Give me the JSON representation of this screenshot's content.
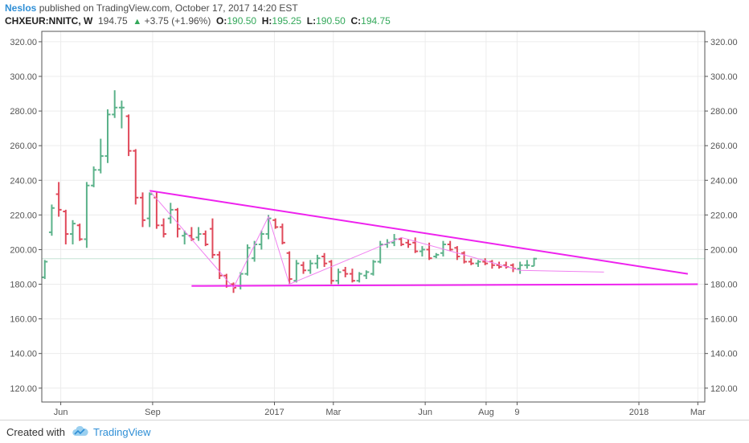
{
  "header": {
    "author": "Neslos",
    "published_text": "published on TradingView.com, October 17, 2017 14:20 EST",
    "symbol": "CHXEUR:NNITC, W",
    "last": "194.75",
    "change": "+3.75 (+1.96%)",
    "o_label": "O:",
    "o_value": "190.50",
    "h_label": "H:",
    "h_value": "195.25",
    "l_label": "L:",
    "l_value": "190.50",
    "c_label": "C:",
    "c_value": "194.75"
  },
  "footer": {
    "created_with": "Created with",
    "brand": "TradingView"
  },
  "colors": {
    "up": "#5bb28a",
    "down": "#e0495a",
    "trendline": "#ee22ee",
    "pattern": "#f080f0",
    "grid": "#ececec",
    "last_price_line": "#c6e4d6"
  },
  "chart_data": {
    "type": "ohlc",
    "title": "CHXEUR:NNITC, W",
    "ylim": [
      112,
      326
    ],
    "y_ticks": [
      "120.00",
      "140.00",
      "160.00",
      "180.00",
      "200.00",
      "220.00",
      "240.00",
      "260.00",
      "280.00",
      "300.00",
      "320.00"
    ],
    "x_ticks": [
      {
        "label": "Jun",
        "date": "2016-06-01"
      },
      {
        "label": "Sep",
        "date": "2016-09-01"
      },
      {
        "label": "2017",
        "date": "2017-01-01"
      },
      {
        "label": "Mar",
        "date": "2017-03-01"
      },
      {
        "label": "Jun",
        "date": "2017-06-01"
      },
      {
        "label": "Aug",
        "date": "2017-08-01"
      },
      {
        "label": "9",
        "date": "2017-09-01"
      },
      {
        "label": "2018",
        "date": "2018-01-01"
      },
      {
        "label": "Mar",
        "date": "2018-03-01"
      }
    ],
    "x_range": [
      "2016-05-13",
      "2018-03-08"
    ],
    "last_price": 194.75,
    "bars": [
      {
        "date": "2016-05-16",
        "o": 184,
        "h": 194,
        "l": 183,
        "c": 193
      },
      {
        "date": "2016-05-23",
        "o": 210,
        "h": 226,
        "l": 208,
        "c": 224
      },
      {
        "date": "2016-05-30",
        "o": 232,
        "h": 239,
        "l": 219,
        "c": 223
      },
      {
        "date": "2016-06-06",
        "o": 222,
        "h": 223,
        "l": 203,
        "c": 209
      },
      {
        "date": "2016-06-13",
        "o": 209,
        "h": 217,
        "l": 203,
        "c": 215
      },
      {
        "date": "2016-06-20",
        "o": 214,
        "h": 215,
        "l": 205,
        "c": 206
      },
      {
        "date": "2016-06-27",
        "o": 206,
        "h": 239,
        "l": 201,
        "c": 237
      },
      {
        "date": "2016-07-04",
        "o": 237,
        "h": 248,
        "l": 236,
        "c": 246
      },
      {
        "date": "2016-07-11",
        "o": 246,
        "h": 264,
        "l": 244,
        "c": 254
      },
      {
        "date": "2016-07-18",
        "o": 254,
        "h": 281,
        "l": 250,
        "c": 278
      },
      {
        "date": "2016-07-25",
        "o": 278,
        "h": 292,
        "l": 276,
        "c": 282
      },
      {
        "date": "2016-08-01",
        "o": 282,
        "h": 286,
        "l": 270,
        "c": 282
      },
      {
        "date": "2016-08-08",
        "o": 277,
        "h": 278,
        "l": 254,
        "c": 257
      },
      {
        "date": "2016-08-15",
        "o": 257,
        "h": 258,
        "l": 226,
        "c": 230
      },
      {
        "date": "2016-08-22",
        "o": 230,
        "h": 233,
        "l": 213,
        "c": 217
      },
      {
        "date": "2016-08-29",
        "o": 218,
        "h": 233,
        "l": 213,
        "c": 232
      },
      {
        "date": "2016-09-05",
        "o": 230,
        "h": 233,
        "l": 212,
        "c": 214
      },
      {
        "date": "2016-09-12",
        "o": 214,
        "h": 218,
        "l": 207,
        "c": 209
      },
      {
        "date": "2016-09-19",
        "o": 218,
        "h": 227,
        "l": 215,
        "c": 223
      },
      {
        "date": "2016-09-26",
        "o": 223,
        "h": 224,
        "l": 207,
        "c": 212
      },
      {
        "date": "2016-10-03",
        "o": 208,
        "h": 211,
        "l": 203,
        "c": 209
      },
      {
        "date": "2016-10-10",
        "o": 208,
        "h": 213,
        "l": 205,
        "c": 206
      },
      {
        "date": "2016-10-17",
        "o": 207,
        "h": 213,
        "l": 205,
        "c": 209
      },
      {
        "date": "2016-10-24",
        "o": 209,
        "h": 211,
        "l": 202,
        "c": 203
      },
      {
        "date": "2016-10-31",
        "o": 212,
        "h": 218,
        "l": 195,
        "c": 197
      },
      {
        "date": "2016-11-07",
        "o": 197,
        "h": 199,
        "l": 183,
        "c": 185
      },
      {
        "date": "2016-11-14",
        "o": 185,
        "h": 186,
        "l": 178,
        "c": 179
      },
      {
        "date": "2016-11-21",
        "o": 180,
        "h": 181,
        "l": 175,
        "c": 178
      },
      {
        "date": "2016-11-28",
        "o": 179,
        "h": 187,
        "l": 177,
        "c": 186
      },
      {
        "date": "2016-12-05",
        "o": 186,
        "h": 203,
        "l": 185,
        "c": 201
      },
      {
        "date": "2016-12-12",
        "o": 195,
        "h": 205,
        "l": 193,
        "c": 203
      },
      {
        "date": "2016-12-19",
        "o": 203,
        "h": 211,
        "l": 200,
        "c": 209
      },
      {
        "date": "2016-12-26",
        "o": 209,
        "h": 220,
        "l": 206,
        "c": 218
      },
      {
        "date": "2017-01-02",
        "o": 217,
        "h": 218,
        "l": 212,
        "c": 213
      },
      {
        "date": "2017-01-09",
        "o": 213,
        "h": 215,
        "l": 203,
        "c": 204
      },
      {
        "date": "2017-01-16",
        "o": 198,
        "h": 199,
        "l": 180,
        "c": 183
      },
      {
        "date": "2017-01-23",
        "o": 182,
        "h": 194,
        "l": 181,
        "c": 192
      },
      {
        "date": "2017-01-30",
        "o": 191,
        "h": 193,
        "l": 186,
        "c": 188
      },
      {
        "date": "2017-02-06",
        "o": 188,
        "h": 194,
        "l": 186,
        "c": 192
      },
      {
        "date": "2017-02-13",
        "o": 192,
        "h": 197,
        "l": 189,
        "c": 195
      },
      {
        "date": "2017-02-20",
        "o": 196,
        "h": 198,
        "l": 190,
        "c": 192
      },
      {
        "date": "2017-02-27",
        "o": 193,
        "h": 194,
        "l": 180,
        "c": 182
      },
      {
        "date": "2017-03-06",
        "o": 182,
        "h": 189,
        "l": 180,
        "c": 187
      },
      {
        "date": "2017-03-13",
        "o": 188,
        "h": 190,
        "l": 184,
        "c": 186
      },
      {
        "date": "2017-03-20",
        "o": 186,
        "h": 189,
        "l": 181,
        "c": 182
      },
      {
        "date": "2017-03-27",
        "o": 182,
        "h": 187,
        "l": 181,
        "c": 186
      },
      {
        "date": "2017-04-03",
        "o": 185,
        "h": 188,
        "l": 183,
        "c": 187
      },
      {
        "date": "2017-04-10",
        "o": 186,
        "h": 194,
        "l": 185,
        "c": 193
      },
      {
        "date": "2017-04-17",
        "o": 193,
        "h": 205,
        "l": 192,
        "c": 203
      },
      {
        "date": "2017-04-24",
        "o": 203,
        "h": 206,
        "l": 201,
        "c": 204
      },
      {
        "date": "2017-05-01",
        "o": 204,
        "h": 209,
        "l": 202,
        "c": 206
      },
      {
        "date": "2017-05-08",
        "o": 206,
        "h": 207,
        "l": 202,
        "c": 203
      },
      {
        "date": "2017-05-15",
        "o": 204,
        "h": 206,
        "l": 201,
        "c": 203
      },
      {
        "date": "2017-05-22",
        "o": 204,
        "h": 207,
        "l": 198,
        "c": 199
      },
      {
        "date": "2017-05-29",
        "o": 199,
        "h": 202,
        "l": 196,
        "c": 200
      },
      {
        "date": "2017-06-05",
        "o": 200,
        "h": 204,
        "l": 194,
        "c": 195
      },
      {
        "date": "2017-06-12",
        "o": 196,
        "h": 198,
        "l": 195,
        "c": 197
      },
      {
        "date": "2017-06-19",
        "o": 198,
        "h": 205,
        "l": 196,
        "c": 203
      },
      {
        "date": "2017-06-26",
        "o": 203,
        "h": 205,
        "l": 199,
        "c": 200
      },
      {
        "date": "2017-07-03",
        "o": 201,
        "h": 202,
        "l": 194,
        "c": 196
      },
      {
        "date": "2017-07-10",
        "o": 198,
        "h": 199,
        "l": 192,
        "c": 193
      },
      {
        "date": "2017-07-17",
        "o": 193,
        "h": 195,
        "l": 191,
        "c": 192
      },
      {
        "date": "2017-07-24",
        "o": 192,
        "h": 194,
        "l": 190,
        "c": 193
      },
      {
        "date": "2017-07-31",
        "o": 193,
        "h": 195,
        "l": 191,
        "c": 192
      },
      {
        "date": "2017-08-07",
        "o": 193,
        "h": 194,
        "l": 189,
        "c": 191
      },
      {
        "date": "2017-08-14",
        "o": 191,
        "h": 193,
        "l": 189,
        "c": 190
      },
      {
        "date": "2017-08-21",
        "o": 191,
        "h": 193,
        "l": 189,
        "c": 190
      },
      {
        "date": "2017-08-28",
        "o": 191,
        "h": 192,
        "l": 187,
        "c": 189
      },
      {
        "date": "2017-09-04",
        "o": 189,
        "h": 193,
        "l": 186,
        "c": 191
      },
      {
        "date": "2017-09-11",
        "o": 191,
        "h": 194,
        "l": 189,
        "c": 191
      },
      {
        "date": "2017-09-18",
        "o": 190.5,
        "h": 195.25,
        "l": 190.5,
        "c": 194.75
      }
    ],
    "annotations": {
      "upper_trendline": [
        [
          "2016-08-29",
          234
        ],
        [
          "2018-02-19",
          186
        ]
      ],
      "lower_trendline": [
        [
          "2016-10-10",
          179
        ],
        [
          "2018-03-01",
          180
        ]
      ],
      "zigzag": [
        [
          "2016-08-29",
          234
        ],
        [
          "2016-11-21",
          178
        ],
        [
          "2016-12-26",
          219
        ],
        [
          "2017-01-16",
          180
        ],
        [
          "2017-05-08",
          207
        ],
        [
          "2017-09-04",
          188
        ],
        [
          "2017-11-27",
          187
        ]
      ]
    }
  }
}
